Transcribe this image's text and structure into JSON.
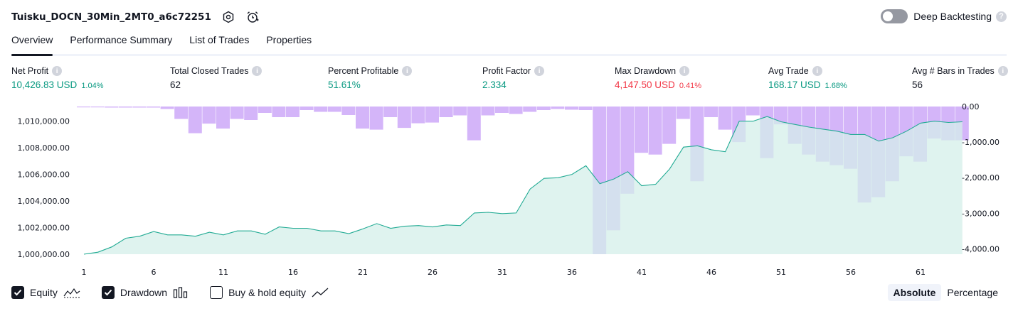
{
  "header": {
    "strategy_name": "Tuisku_DOCN_30Min_2MT0_a6c72251",
    "deep_backtesting_label": "Deep Backtesting"
  },
  "tabs": [
    {
      "label": "Overview"
    },
    {
      "label": "Performance Summary"
    },
    {
      "label": "List of Trades"
    },
    {
      "label": "Properties"
    }
  ],
  "metrics": {
    "net_profit": {
      "label": "Net Profit",
      "value": "10,426.83 USD",
      "pct": "1.04%"
    },
    "total_closed_trades": {
      "label": "Total Closed Trades",
      "value": "62"
    },
    "percent_profitable": {
      "label": "Percent Profitable",
      "value": "51.61%"
    },
    "profit_factor": {
      "label": "Profit Factor",
      "value": "2.334"
    },
    "max_drawdown": {
      "label": "Max Drawdown",
      "value": "4,147.50 USD",
      "pct": "0.41%"
    },
    "avg_trade": {
      "label": "Avg Trade",
      "value": "168.17 USD",
      "pct": "1.68%"
    },
    "avg_bars": {
      "label": "Avg # Bars in Trades",
      "value": "56"
    }
  },
  "legend": {
    "equity": "Equity",
    "drawdown": "Drawdown",
    "buy_hold": "Buy & hold equity"
  },
  "mode": {
    "absolute": "Absolute",
    "percentage": "Percentage"
  },
  "colors": {
    "equity_line": "#22ab94",
    "equity_fill": "#d4efe9",
    "drawdown_bar": "#c69cf7",
    "profit_green": "#089981",
    "loss_red": "#f23645"
  },
  "chart_data": {
    "type": "line+bar",
    "x_ticks": [
      1,
      6,
      11,
      16,
      21,
      26,
      31,
      36,
      41,
      46,
      51,
      56,
      61
    ],
    "left_axis": {
      "ticks": [
        1000000,
        1002000,
        1004000,
        1006000,
        1008000,
        1010000
      ],
      "tick_labels": [
        "1,000,000.00",
        "1,002,000.00",
        "1,004,000.00",
        "1,006,000.00",
        "1,008,000.00",
        "1,010,000.00"
      ],
      "ylim": [
        1000000,
        1011100
      ]
    },
    "right_axis": {
      "ticks": [
        0,
        -1000,
        -2000,
        -3000,
        -4000
      ],
      "tick_labels": [
        "0.00",
        "-1,000.00",
        "-2,000.00",
        "-3,000.00",
        "-4,000.00"
      ],
      "ylim": [
        -4150,
        0
      ]
    },
    "series": [
      {
        "name": "Equity",
        "type": "area",
        "values": [
          1000000,
          1000150,
          1000550,
          1001200,
          1001350,
          1001700,
          1001450,
          1001450,
          1001350,
          1001650,
          1001450,
          1001750,
          1001750,
          1001500,
          1002050,
          1001950,
          1001950,
          1001750,
          1001750,
          1001550,
          1001900,
          1002300,
          1001950,
          1002100,
          1002150,
          1002050,
          1002200,
          1002150,
          1003100,
          1003150,
          1003050,
          1003100,
          1004900,
          1005700,
          1005750,
          1006000,
          1006650,
          1005300,
          1005650,
          1006200,
          1005150,
          1005250,
          1006400,
          1008050,
          1008150,
          1007850,
          1007700,
          1010000,
          1010000,
          1010350,
          1009950,
          1009750,
          1009550,
          1009400,
          1009250,
          1009000,
          1009000,
          1008500,
          1008750,
          1009250,
          1009850,
          1010000,
          1009900,
          1009950
        ]
      },
      {
        "name": "Drawdown",
        "type": "bar",
        "values": [
          0,
          -20,
          -30,
          -30,
          -30,
          -30,
          -70,
          -350,
          -750,
          -480,
          -620,
          -350,
          -380,
          -180,
          -300,
          -300,
          -100,
          -150,
          -150,
          -240,
          -620,
          -650,
          -300,
          -600,
          -470,
          -450,
          -300,
          -250,
          -950,
          -250,
          -180,
          -210,
          -150,
          -100,
          -70,
          -90,
          -100,
          -4150,
          -3480,
          -2450,
          -1300,
          -1350,
          -1050,
          -350,
          -2100,
          -300,
          -650,
          -1000,
          -250,
          -1450,
          -500,
          -1050,
          -1350,
          -1550,
          -1650,
          -1750,
          -2700,
          -2550,
          -2100,
          -1400,
          -1550,
          -900,
          -950,
          -950
        ]
      }
    ]
  }
}
